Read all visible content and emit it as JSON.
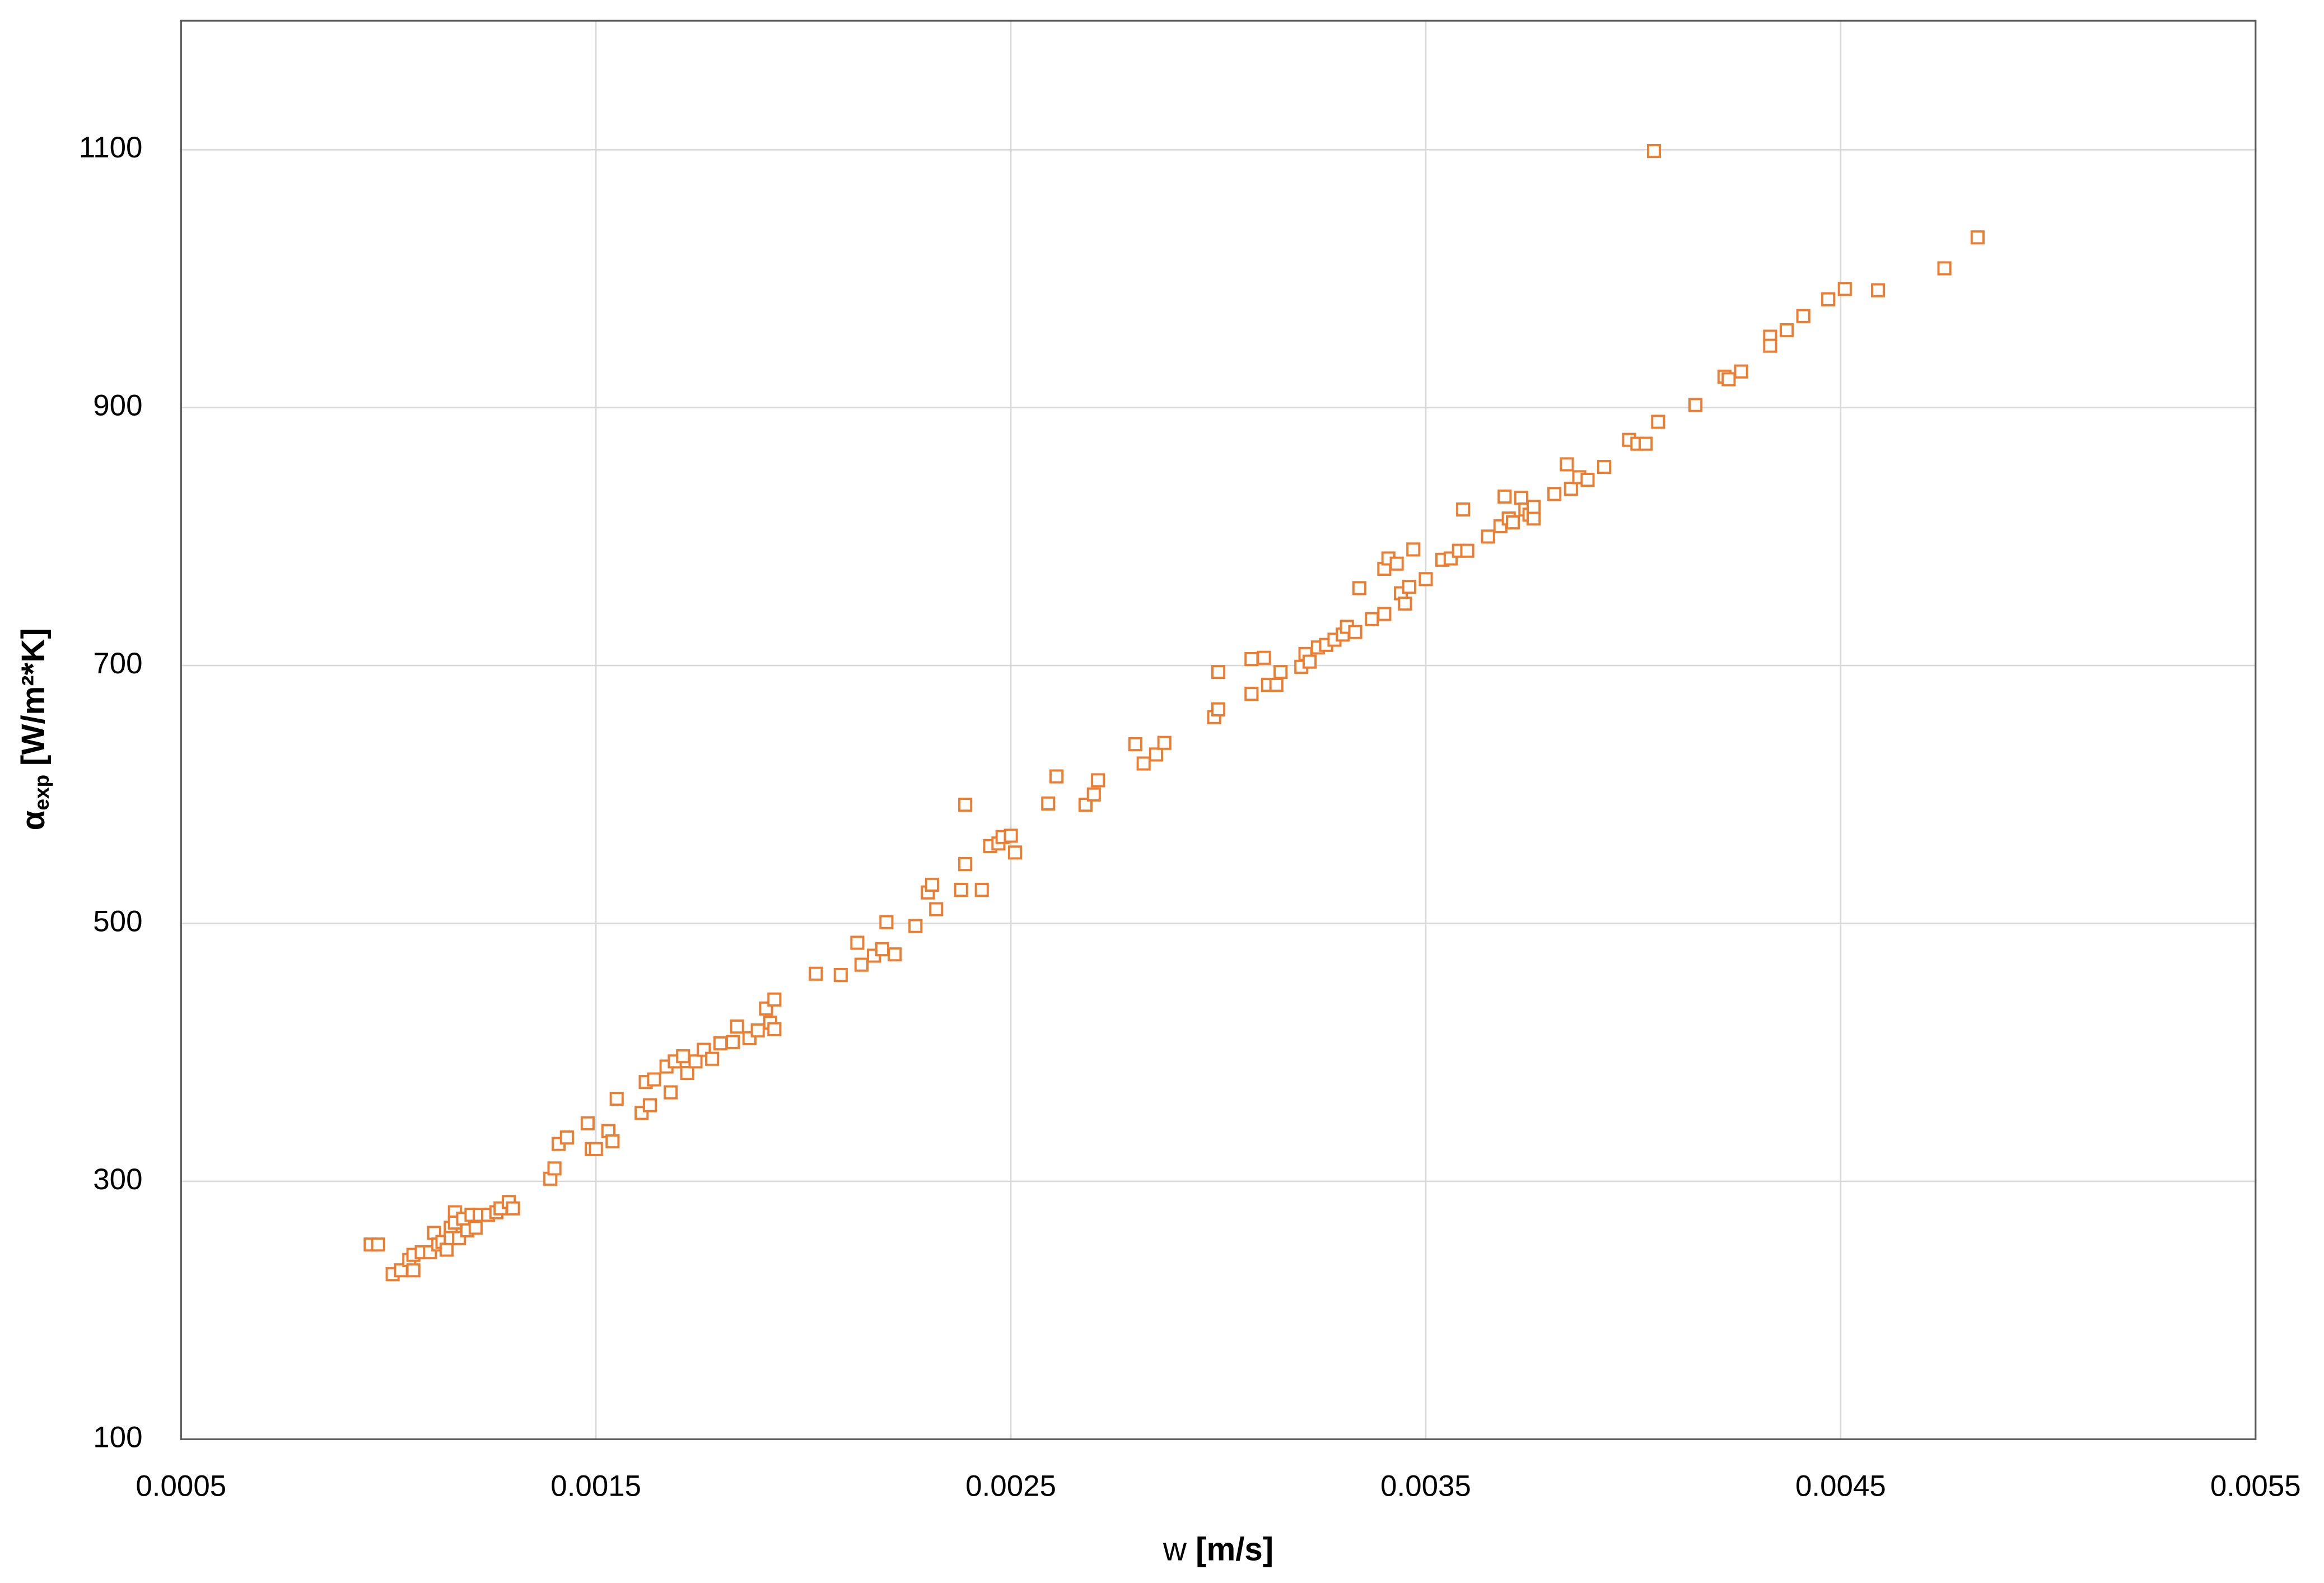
{
  "chart_data": {
    "type": "scatter",
    "ylabel": "α",
    "ylabel_sub": "exp",
    "ylabel_unit": "[W/m²*K]",
    "xlabel": "w",
    "xlabel_unit": "[m/s]",
    "color": "#ED7D31",
    "grid": true,
    "xlim": [
      0.0005,
      0.0055
    ],
    "xticks": [
      0.0005,
      0.0015,
      0.0025,
      0.0035,
      0.0045,
      0.0055
    ],
    "ylim": [
      100,
      1200
    ],
    "yticks": [
      100,
      300,
      500,
      700,
      900,
      1100
    ],
    "x": [
      0.000957,
      0.000975,
      0.00101,
      0.00103,
      0.00105,
      0.00106,
      0.00106,
      0.00108,
      0.0011,
      0.00111,
      0.00112,
      0.00113,
      0.00114,
      0.00115,
      0.00115,
      0.00116,
      0.00116,
      0.00117,
      0.00118,
      0.00119,
      0.0012,
      0.00121,
      0.00122,
      0.00124,
      0.00126,
      0.00127,
      0.00129,
      0.0013,
      0.00139,
      0.0014,
      0.00141,
      0.00143,
      0.00148,
      0.00149,
      0.0015,
      0.00153,
      0.00154,
      0.00155,
      0.00161,
      0.00162,
      0.00163,
      0.00164,
      0.00167,
      0.00168,
      0.00169,
      0.00171,
      0.00172,
      0.00174,
      0.00176,
      0.00178,
      0.0018,
      0.00183,
      0.00184,
      0.00187,
      0.00189,
      0.00191,
      0.00192,
      0.00193,
      0.00193,
      0.00203,
      0.00209,
      0.00213,
      0.00214,
      0.00217,
      0.00219,
      0.0022,
      0.00222,
      0.00227,
      0.0023,
      0.00231,
      0.00232,
      0.00238,
      0.00239,
      0.00239,
      0.00243,
      0.00245,
      0.00247,
      0.00248,
      0.0025,
      0.00251,
      0.00259,
      0.00261,
      0.00268,
      0.0027,
      0.00271,
      0.0028,
      0.00282,
      0.00285,
      0.00287,
      0.00299,
      0.003,
      0.003,
      0.00308,
      0.00308,
      0.00311,
      0.00312,
      0.00314,
      0.00315,
      0.0032,
      0.00321,
      0.00322,
      0.00324,
      0.00326,
      0.00328,
      0.0033,
      0.00331,
      0.00333,
      0.00334,
      0.00337,
      0.0034,
      0.0034,
      0.00341,
      0.00343,
      0.00344,
      0.00345,
      0.00346,
      0.00347,
      0.0035,
      0.00354,
      0.00356,
      0.00358,
      0.00359,
      0.0036,
      0.00365,
      0.00368,
      0.00369,
      0.0037,
      0.00371,
      0.00373,
      0.00374,
      0.00375,
      0.00376,
      0.00376,
      0.00381,
      0.00384,
      0.00385,
      0.00387,
      0.00389,
      0.00393,
      0.00399,
      0.00401,
      0.00403,
      0.00406,
      0.00405,
      0.00415,
      0.00422,
      0.00423,
      0.00426,
      0.00433,
      0.00433,
      0.00437,
      0.00441,
      0.00447,
      0.00451,
      0.00459,
      0.00475,
      0.00483
    ],
    "values": [
      251,
      251,
      228,
      231,
      239,
      231,
      243,
      245,
      245,
      260,
      251,
      253,
      247,
      264,
      256,
      276,
      268,
      256,
      271,
      262,
      274,
      264,
      274,
      274,
      276,
      279,
      284,
      279,
      302,
      310,
      329,
      334,
      345,
      325,
      325,
      339,
      331,
      364,
      353,
      377,
      359,
      379,
      389,
      369,
      393,
      397,
      384,
      393,
      402,
      395,
      407,
      408,
      420,
      411,
      417,
      434,
      423,
      441,
      418,
      461,
      460,
      485,
      468,
      475,
      480,
      501,
      476,
      498,
      524,
      530,
      511,
      526,
      546,
      592,
      526,
      560,
      562,
      567,
      568,
      555,
      593,
      614,
      592,
      600,
      611,
      639,
      624,
      631,
      640,
      660,
      695,
      666,
      678,
      705,
      706,
      685,
      685,
      695,
      699,
      709,
      703,
      714,
      716,
      720,
      724,
      730,
      726,
      760,
      736,
      775,
      740,
      783,
      779,
      756,
      748,
      761,
      790,
      767,
      782,
      783,
      789,
      821,
      789,
      800,
      808,
      831,
      814,
      811,
      830,
      821,
      817,
      814,
      823,
      833,
      856,
      837,
      846,
      844,
      854,
      875,
      872,
      872,
      889,
      1099,
      902,
      924,
      922,
      928,
      955,
      948,
      960,
      971,
      984,
      992,
      991,
      1008,
      1032
    ]
  }
}
